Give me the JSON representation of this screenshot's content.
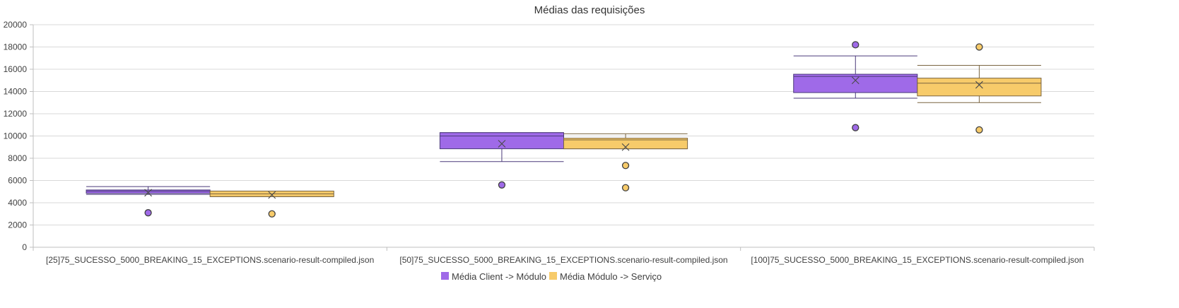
{
  "chart_data": {
    "type": "boxplot",
    "title": "Médias das requisições",
    "xlabel": "",
    "ylabel": "",
    "ylim": [
      0,
      20000
    ],
    "yticks": [
      0,
      2000,
      4000,
      6000,
      8000,
      10000,
      12000,
      14000,
      16000,
      18000,
      20000
    ],
    "grid": true,
    "legend_position": "bottom",
    "categories": [
      "[25]75_SUCESSO_5000_BREAKING_15_EXCEPTIONS.scenario-result-compiled.json",
      "[50]75_SUCESSO_5000_BREAKING_15_EXCEPTIONS.scenario-result-compiled.json",
      "[100]75_SUCESSO_5000_BREAKING_15_EXCEPTIONS.scenario-result-compiled.json"
    ],
    "series": [
      {
        "name": "Média Client -> Módulo",
        "color": "#9F6AE8",
        "border": "#4B3A7A",
        "boxes": [
          {
            "min": 4750,
            "q1": 4850,
            "median": 5050,
            "q3": 5150,
            "max": 5450,
            "mean": 4900,
            "outliers": [
              3100
            ]
          },
          {
            "min": 7700,
            "q1": 8850,
            "median": 10000,
            "q3": 10300,
            "max": 10300,
            "mean": 9300,
            "outliers": [
              5600
            ]
          },
          {
            "min": 13400,
            "q1": 13900,
            "median": 15350,
            "q3": 15550,
            "max": 17200,
            "mean": 15000,
            "outliers": [
              10750,
              18200
            ]
          }
        ]
      },
      {
        "name": "Média Módulo -> Serviço",
        "color": "#F7CB6A",
        "border": "#7A6440",
        "boxes": [
          {
            "min": 4550,
            "q1": 4550,
            "median": 4800,
            "q3": 5050,
            "max": 5050,
            "mean": 4700,
            "outliers": [
              3000
            ]
          },
          {
            "min": 8850,
            "q1": 8850,
            "median": 9650,
            "q3": 9800,
            "max": 10200,
            "mean": 9000,
            "outliers": [
              5350,
              7350
            ]
          },
          {
            "min": 13000,
            "q1": 13600,
            "median": 14750,
            "q3": 15200,
            "max": 16350,
            "mean": 14600,
            "outliers": [
              10550,
              18000
            ]
          }
        ]
      }
    ]
  }
}
